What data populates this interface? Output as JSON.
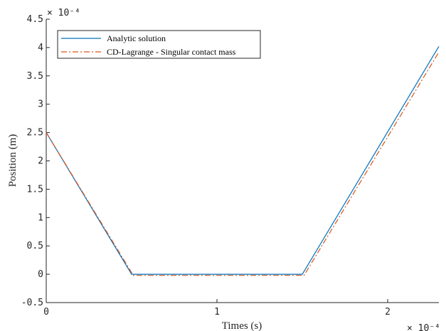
{
  "chart_data": {
    "type": "line",
    "xlabel": "Times (s)",
    "ylabel": "Position (m)",
    "x_exponent": "× 10⁻⁴",
    "y_exponent": "× 10⁻⁴",
    "x_scale": 0.0001,
    "y_scale": 0.0001,
    "xlim": [
      0,
      2.3
    ],
    "ylim": [
      -0.5,
      4.5
    ],
    "x_ticks": [
      "0",
      "1",
      "2"
    ],
    "y_ticks": [
      "4.5",
      "4",
      "3.5",
      "3",
      "2.5",
      "2",
      "1.5",
      "1",
      "0.5",
      "0",
      "-0.5"
    ],
    "grid": false,
    "legend_position": "top-left",
    "series": [
      {
        "name": "Analytic solution",
        "color": "#0072BD",
        "dash": "solid",
        "x": [
          0,
          0.5,
          1.5,
          2.3
        ],
        "y": [
          2.5,
          0.0,
          0.0,
          4.02
        ]
      },
      {
        "name": "CD-Lagrange - Singular contact mass",
        "color": "#D95319",
        "dash": "dashdot",
        "x": [
          0,
          0.51,
          1.51,
          2.3
        ],
        "y": [
          2.5,
          -0.02,
          -0.02,
          3.92
        ]
      }
    ]
  }
}
